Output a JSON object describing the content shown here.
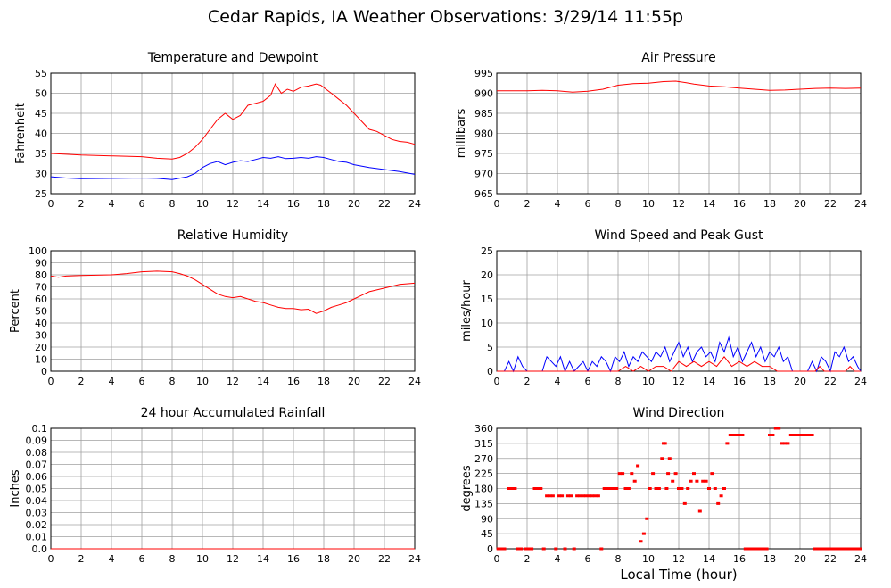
{
  "page": {
    "title": "Cedar Rapids, IA Weather Observations: 3/29/14 11:55p",
    "x_axis_title": "Local Time (hour)"
  },
  "colors": {
    "red": "#ff0000",
    "blue": "#0000ff",
    "grid": "#a0a0a0",
    "frame": "#000000"
  },
  "chart_data": [
    {
      "id": "temp",
      "type": "line",
      "title": "Temperature and Dewpoint",
      "ylabel": "Fahrenheit",
      "xlim": [
        0,
        24
      ],
      "ylim": [
        25,
        55
      ],
      "xticks": [
        0,
        2,
        4,
        6,
        8,
        10,
        12,
        14,
        16,
        18,
        20,
        22,
        24
      ],
      "yticks": [
        25,
        30,
        35,
        40,
        45,
        50,
        55
      ],
      "grid": true,
      "series": [
        {
          "color": "#ff0000",
          "x": [
            0,
            2,
            4,
            6,
            7,
            8,
            8.5,
            9,
            9.5,
            10,
            10.5,
            11,
            11.5,
            12,
            12.5,
            13,
            13.5,
            14,
            14.5,
            14.8,
            15.2,
            15.6,
            16,
            16.5,
            17,
            17.5,
            17.8,
            18.5,
            19,
            19.5,
            20,
            20.5,
            21,
            21.5,
            22,
            22.5,
            23,
            23.5,
            24
          ],
          "y": [
            35,
            34.6,
            34.4,
            34.2,
            33.8,
            33.6,
            34,
            35,
            36.5,
            38.5,
            41,
            43.5,
            45,
            43.5,
            44.5,
            47,
            47.5,
            48,
            49.5,
            52.3,
            50,
            51,
            50.5,
            51.5,
            51.8,
            52.3,
            52,
            50,
            48.5,
            47,
            45,
            43,
            41,
            40.5,
            39.5,
            38.5,
            38,
            37.8,
            37.3
          ]
        },
        {
          "color": "#0000ff",
          "x": [
            0,
            1,
            2,
            4,
            6,
            7,
            8,
            9,
            9.5,
            10,
            10.5,
            11,
            11.5,
            12,
            12.5,
            13,
            13.5,
            14,
            14.5,
            15,
            15.5,
            16,
            16.5,
            17,
            17.5,
            18,
            18.5,
            19,
            19.5,
            20,
            21,
            22,
            23,
            24
          ],
          "y": [
            29.2,
            28.9,
            28.7,
            28.8,
            28.9,
            28.8,
            28.5,
            29.2,
            30,
            31.5,
            32.5,
            33,
            32.2,
            32.8,
            33.2,
            33,
            33.5,
            34,
            33.8,
            34.2,
            33.7,
            33.8,
            34,
            33.8,
            34.2,
            34,
            33.5,
            33,
            32.8,
            32.2,
            31.5,
            31,
            30.5,
            29.8
          ]
        }
      ]
    },
    {
      "id": "pressure",
      "type": "line",
      "title": "Air Pressure",
      "ylabel": "millibars",
      "xlim": [
        0,
        24
      ],
      "ylim": [
        965,
        995
      ],
      "xticks": [
        0,
        2,
        4,
        6,
        8,
        10,
        12,
        14,
        16,
        18,
        20,
        22,
        24
      ],
      "yticks": [
        965,
        970,
        975,
        980,
        985,
        990,
        995
      ],
      "grid": true,
      "series": [
        {
          "color": "#ff0000",
          "x": [
            0,
            2,
            3,
            4,
            5,
            6,
            7,
            8,
            9,
            10,
            11,
            11.8,
            12.5,
            13,
            14,
            15,
            16,
            17,
            18,
            19,
            20,
            21,
            22,
            23,
            24
          ],
          "y": [
            990.6,
            990.6,
            990.7,
            990.6,
            990.3,
            990.5,
            991,
            992,
            992.4,
            992.5,
            992.9,
            993,
            992.6,
            992.3,
            991.8,
            991.6,
            991.3,
            991,
            990.7,
            990.8,
            991,
            991.2,
            991.3,
            991.2,
            991.3
          ]
        }
      ]
    },
    {
      "id": "humidity",
      "type": "line",
      "title": "Relative Humidity",
      "ylabel": "Percent",
      "xlim": [
        0,
        24
      ],
      "ylim": [
        0,
        100
      ],
      "xticks": [
        0,
        2,
        4,
        6,
        8,
        10,
        12,
        14,
        16,
        18,
        20,
        22,
        24
      ],
      "yticks": [
        0,
        10,
        20,
        30,
        40,
        50,
        60,
        70,
        80,
        90,
        100
      ],
      "grid": true,
      "series": [
        {
          "color": "#ff0000",
          "x": [
            0,
            0.5,
            1,
            2,
            4,
            5,
            6,
            7,
            8,
            8.5,
            9,
            9.5,
            10,
            10.5,
            11,
            11.5,
            12,
            12.5,
            13,
            13.5,
            14,
            14.5,
            15,
            15.5,
            16,
            16.5,
            17,
            17.5,
            18,
            18.5,
            19,
            19.5,
            20,
            20.5,
            21,
            22,
            23,
            24
          ],
          "y": [
            79,
            78,
            79,
            79.5,
            80,
            81,
            82.5,
            83,
            82.5,
            81,
            79,
            76,
            72,
            68,
            64,
            62,
            61,
            62,
            60,
            58,
            57,
            55,
            53,
            52,
            52,
            51,
            51.5,
            48,
            50,
            53,
            55,
            57,
            60,
            63,
            66,
            69,
            72,
            73
          ]
        }
      ]
    },
    {
      "id": "wind",
      "type": "line",
      "title": "Wind Speed and Peak Gust",
      "ylabel": "miles/hour",
      "xlim": [
        0,
        24
      ],
      "ylim": [
        0,
        25
      ],
      "xticks": [
        0,
        2,
        4,
        6,
        8,
        10,
        12,
        14,
        16,
        18,
        20,
        22,
        24
      ],
      "yticks": [
        0,
        5,
        10,
        15,
        20,
        25
      ],
      "grid": true,
      "series": [
        {
          "color": "#0000ff",
          "x": [
            0,
            0.5,
            0.8,
            1.1,
            1.4,
            1.7,
            2,
            3,
            3.3,
            3.6,
            3.9,
            4.2,
            4.5,
            4.8,
            5.1,
            5.4,
            5.7,
            6,
            6.3,
            6.6,
            6.9,
            7.2,
            7.5,
            7.8,
            8.1,
            8.4,
            8.7,
            9,
            9.3,
            9.6,
            9.9,
            10.2,
            10.5,
            10.8,
            11.1,
            11.4,
            11.7,
            12,
            12.3,
            12.6,
            12.9,
            13.2,
            13.5,
            13.8,
            14.1,
            14.4,
            14.7,
            15,
            15.3,
            15.6,
            15.9,
            16.2,
            16.5,
            16.8,
            17.1,
            17.4,
            17.7,
            18,
            18.3,
            18.6,
            18.9,
            19.2,
            19.5,
            20,
            20.5,
            20.8,
            21.1,
            21.4,
            21.7,
            22,
            22.3,
            22.6,
            22.9,
            23.2,
            23.5,
            23.8,
            24
          ],
          "y": [
            0,
            0,
            2,
            0,
            3,
            1,
            0,
            0,
            3,
            2,
            1,
            3,
            0,
            2,
            0,
            1,
            2,
            0,
            2,
            1,
            3,
            2,
            0,
            3,
            2,
            4,
            1,
            3,
            2,
            4,
            3,
            2,
            4,
            3,
            5,
            2,
            4,
            6,
            3,
            5,
            2,
            4,
            5,
            3,
            4,
            2,
            6,
            4,
            7,
            3,
            5,
            2,
            4,
            6,
            3,
            5,
            2,
            4,
            3,
            5,
            2,
            3,
            0,
            0,
            0,
            2,
            0,
            3,
            2,
            0,
            4,
            3,
            5,
            2,
            3,
            1,
            0
          ]
        },
        {
          "color": "#ff0000",
          "x": [
            0,
            8,
            8.5,
            9,
            9.5,
            10,
            10.5,
            11,
            11.5,
            12,
            12.5,
            13,
            13.5,
            14,
            14.5,
            15,
            15.5,
            16,
            16.5,
            17,
            17.5,
            18,
            18.5,
            19,
            21,
            21.3,
            21.6,
            22,
            23,
            23.3,
            23.6,
            24
          ],
          "y": [
            0,
            0,
            1,
            0,
            1,
            0,
            1,
            1,
            0,
            2,
            1,
            2,
            1,
            2,
            1,
            3,
            1,
            2,
            1,
            2,
            1,
            1,
            0,
            0,
            0,
            1,
            0,
            0,
            0,
            1,
            0,
            0
          ]
        }
      ]
    },
    {
      "id": "rain",
      "type": "line",
      "title": "24 hour Accumulated Rainfall",
      "ylabel": "Inches",
      "xlim": [
        0,
        24
      ],
      "ylim": [
        0,
        0.1
      ],
      "xticks": [
        0,
        2,
        4,
        6,
        8,
        10,
        12,
        14,
        16,
        18,
        20,
        22,
        24
      ],
      "yticks": [
        0.0,
        0.01,
        0.02,
        0.03,
        0.04,
        0.05,
        0.06,
        0.07,
        0.08,
        0.09,
        0.1
      ],
      "grid": true,
      "series": [
        {
          "color": "#ff0000",
          "x": [
            0,
            24
          ],
          "y": [
            0,
            0
          ]
        }
      ]
    },
    {
      "id": "direction",
      "type": "scatter",
      "title": "Wind Direction",
      "ylabel": "degrees",
      "xlim": [
        0,
        24
      ],
      "ylim": [
        0,
        360
      ],
      "xticks": [
        0,
        2,
        4,
        6,
        8,
        10,
        12,
        14,
        16,
        18,
        20,
        22,
        24
      ],
      "yticks": [
        0,
        45,
        90,
        135,
        180,
        225,
        270,
        315,
        360
      ],
      "grid": true,
      "series": [
        {
          "color": "#ff0000",
          "x": [
            0.1,
            0.3,
            0.5,
            0.8,
            1.0,
            1.2,
            1.4,
            1.6,
            1.9,
            2.1,
            2.3,
            2.5,
            2.7,
            2.9,
            3.1,
            3.3,
            3.5,
            3.7,
            3.9,
            4.1,
            4.3,
            4.5,
            4.7,
            4.9,
            5.1,
            5.3,
            5.5,
            5.7,
            5.9,
            6.1,
            6.3,
            6.5,
            6.7,
            6.9,
            7.1,
            7.3,
            7.5,
            7.7,
            7.9,
            8.1,
            8.3,
            8.5,
            8.7,
            8.9,
            9.1,
            9.3,
            9.5,
            9.7,
            9.9,
            10.1,
            10.3,
            10.5,
            10.7,
            10.9,
            11.0,
            11.1,
            11.2,
            11.3,
            11.4,
            11.6,
            11.8,
            12.0,
            12.2,
            12.4,
            12.6,
            12.8,
            13.0,
            13.2,
            13.4,
            13.6,
            13.8,
            14.0,
            14.2,
            14.4,
            14.6,
            14.8,
            15.0,
            15.2,
            15.4,
            15.6,
            15.8,
            16.0,
            16.2,
            16.4,
            16.6,
            16.8,
            17.0,
            17.2,
            17.4,
            17.6,
            17.8,
            18.0,
            18.2,
            18.4,
            18.6,
            18.8,
            19.0,
            19.2,
            19.4,
            19.6,
            19.8,
            20.0,
            20.2,
            20.4,
            20.6,
            20.8,
            21.0,
            21.2,
            21.4,
            21.6,
            21.8,
            22.0,
            22.2,
            22.4,
            22.6,
            22.8,
            23.0,
            23.2,
            23.4,
            23.6,
            23.8,
            24.0
          ],
          "y": [
            0,
            0,
            0,
            180,
            180,
            180,
            0,
            0,
            0,
            0,
            0,
            180,
            180,
            180,
            0,
            158,
            158,
            158,
            0,
            158,
            158,
            0,
            158,
            158,
            0,
            158,
            158,
            158,
            158,
            158,
            158,
            158,
            158,
            0,
            180,
            180,
            180,
            180,
            180,
            225,
            225,
            180,
            180,
            225,
            202,
            248,
            22,
            45,
            90,
            180,
            225,
            180,
            180,
            270,
            315,
            315,
            180,
            225,
            270,
            202,
            225,
            180,
            180,
            135,
            180,
            202,
            225,
            202,
            112,
            202,
            202,
            180,
            225,
            180,
            135,
            158,
            180,
            315,
            340,
            340,
            340,
            340,
            340,
            0,
            0,
            0,
            0,
            0,
            0,
            0,
            0,
            340,
            340,
            360,
            360,
            315,
            315,
            315,
            340,
            340,
            340,
            340,
            340,
            340,
            340,
            340,
            0,
            0,
            0,
            0,
            0,
            0,
            0,
            0,
            0,
            0,
            0,
            0,
            0,
            0,
            0,
            0
          ]
        }
      ]
    }
  ]
}
